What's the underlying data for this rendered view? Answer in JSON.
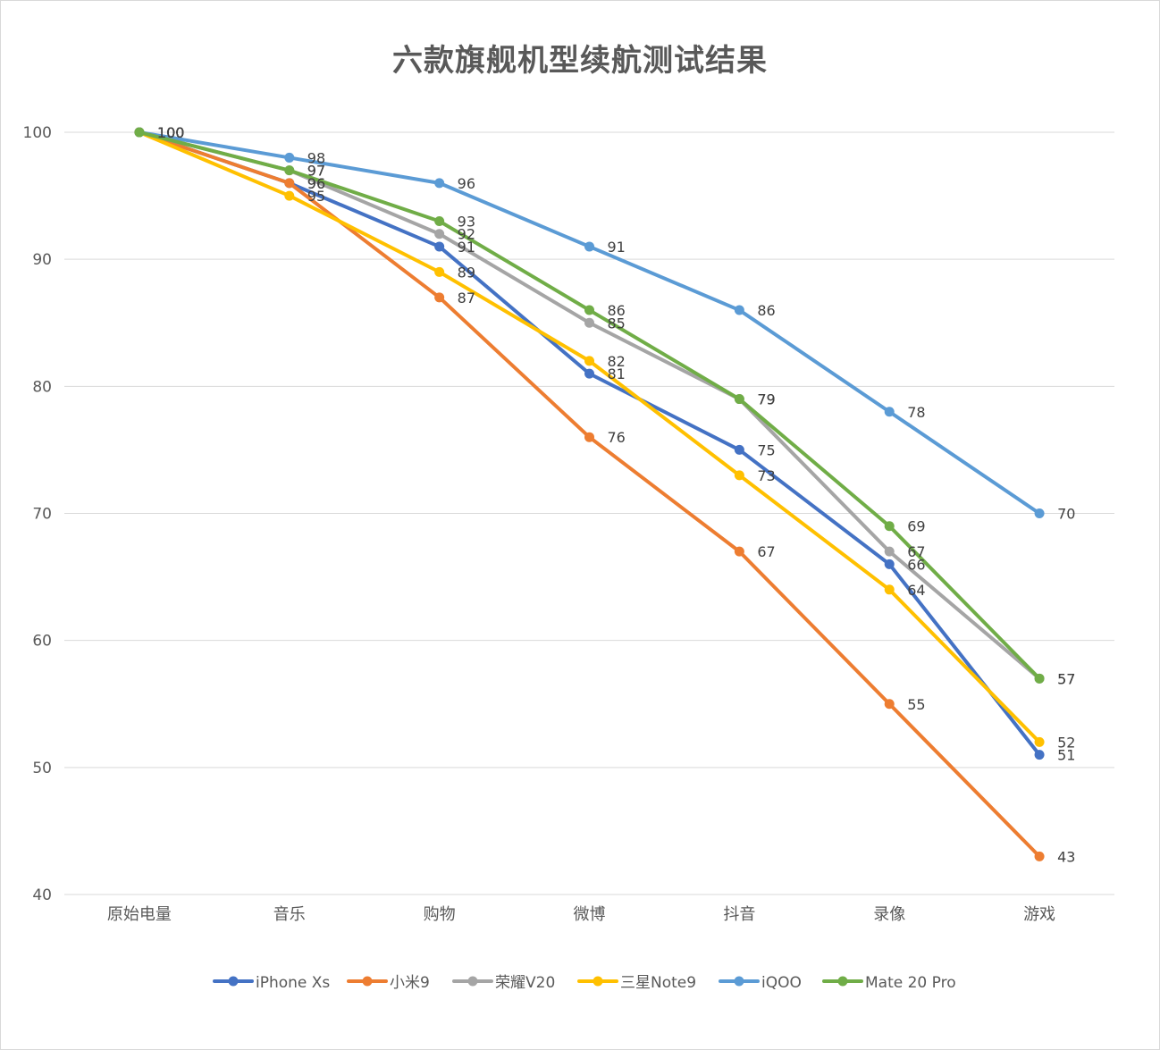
{
  "chart_data": {
    "type": "line",
    "title": "六款旗舰机型续航测试结果",
    "xlabel": "",
    "ylabel": "",
    "categories": [
      "原始电量",
      "音乐",
      "购物",
      "微博",
      "抖音",
      "录像",
      "游戏"
    ],
    "ylim": [
      40,
      100
    ],
    "yticks": [
      40,
      50,
      60,
      70,
      80,
      90,
      100
    ],
    "grid": true,
    "legend_position": "bottom",
    "series": [
      {
        "name": "iPhone Xs",
        "color": "#4472c4",
        "values": [
          100,
          96,
          91,
          81,
          75,
          66,
          51
        ]
      },
      {
        "name": "小米9",
        "color": "#ed7d31",
        "values": [
          100,
          96,
          87,
          76,
          67,
          55,
          43
        ]
      },
      {
        "name": "荣耀V20",
        "color": "#a5a5a5",
        "values": [
          100,
          97,
          92,
          85,
          79,
          67,
          57
        ]
      },
      {
        "name": "三星Note9",
        "color": "#ffc000",
        "values": [
          100,
          95,
          89,
          82,
          73,
          64,
          52
        ]
      },
      {
        "name": "iQOO",
        "color": "#5b9bd5",
        "values": [
          100,
          98,
          96,
          91,
          86,
          78,
          70
        ]
      },
      {
        "name": "Mate 20 Pro",
        "color": "#70ad47",
        "values": [
          100,
          97,
          93,
          86,
          79,
          69,
          57
        ]
      }
    ]
  }
}
